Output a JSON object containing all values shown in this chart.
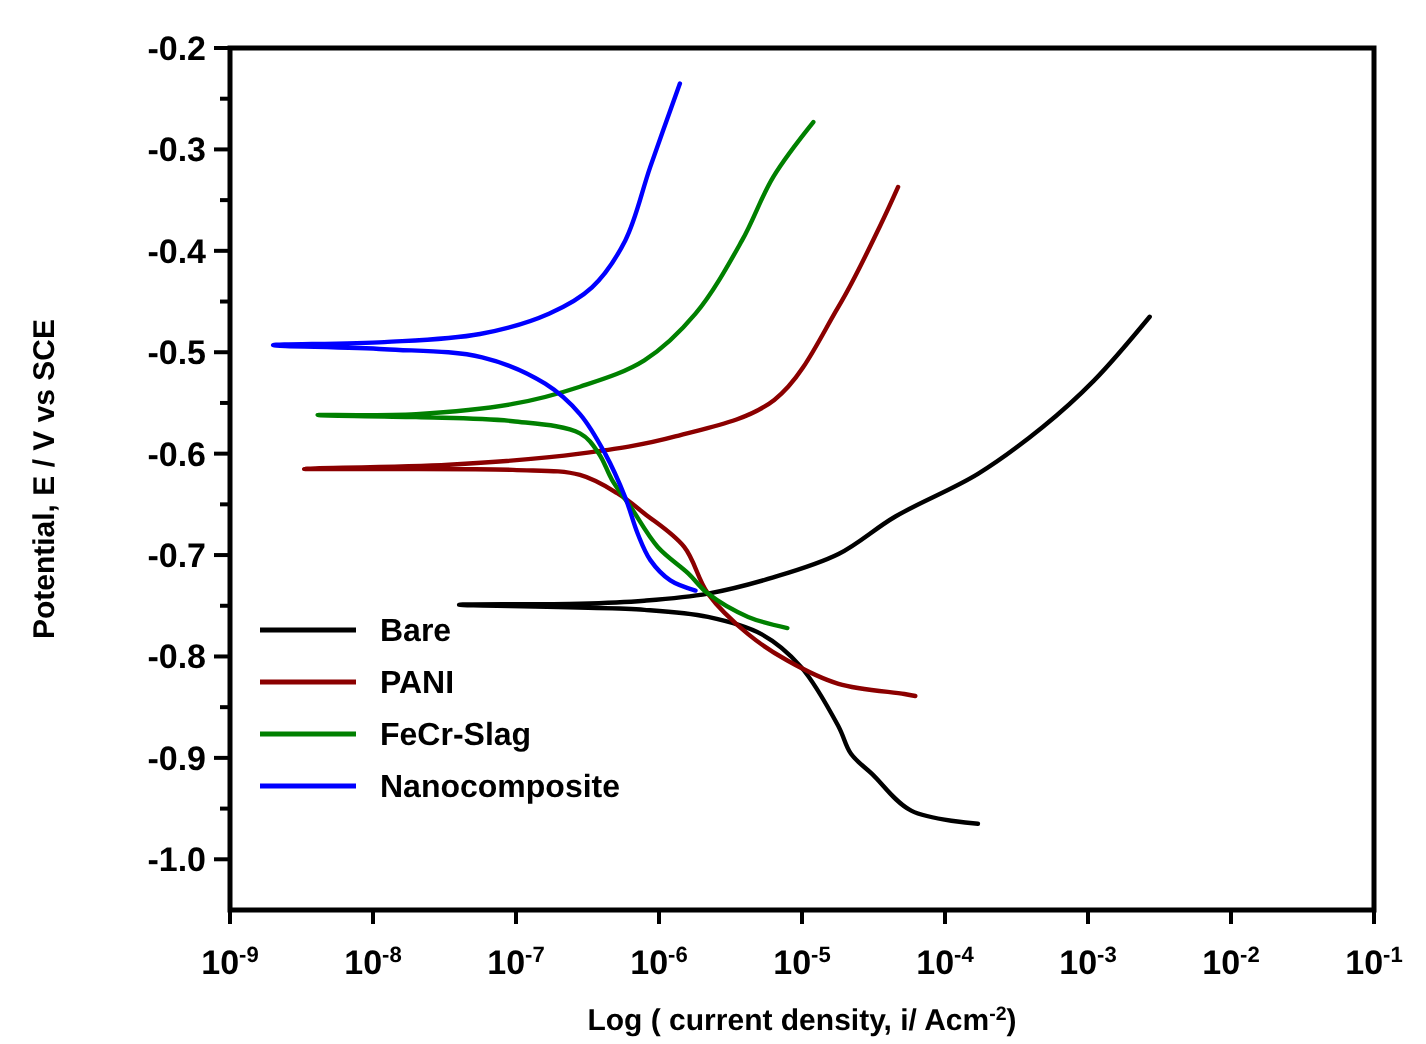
{
  "chart_data": {
    "type": "line",
    "xlabel": "Log ( current density, i/ Acm$^{-2}$)",
    "ylabel": "Potential, E / V vs SCE",
    "log": "x",
    "xlim": [
      1e-09,
      0.1
    ],
    "ylim": [
      -1.05,
      -0.2
    ],
    "xticks": [
      {
        "value": 1e-09,
        "label": "10$^{-9}$"
      },
      {
        "value": 1e-08,
        "label": "10$^{-8}$"
      },
      {
        "value": 1e-07,
        "label": "10$^{-7}$"
      },
      {
        "value": 1e-06,
        "label": "10$^{-6}$"
      },
      {
        "value": 1e-05,
        "label": "10$^{-5}$"
      },
      {
        "value": 0.0001,
        "label": "10$^{-4}$"
      },
      {
        "value": 0.001,
        "label": "10$^{-3}$"
      },
      {
        "value": 0.01,
        "label": "10$^{-2}$"
      },
      {
        "value": 0.1,
        "label": "10$^{-1}$"
      }
    ],
    "yticks": [
      -0.2,
      {
        "value": -0.25,
        "label": null
      },
      -0.3,
      {
        "value": -0.35,
        "label": null
      },
      -0.4,
      {
        "value": -0.45,
        "label": null
      },
      -0.5,
      {
        "value": -0.55,
        "label": null
      },
      -0.6,
      {
        "value": -0.65,
        "label": null
      },
      -0.7,
      {
        "value": -0.75,
        "label": null
      },
      -0.8,
      {
        "value": -0.85,
        "label": null
      },
      -0.9,
      {
        "value": -0.95,
        "label": null
      },
      {
        "value": -1,
        "label": "-1.0"
      }
    ],
    "grid": false,
    "legend": "bottom left",
    "marker": "none",
    "line_style": "solid",
    "series": [
      {
        "name": "Bare",
        "color": "#000000",
        "x": [
          0.00017,
          5.8e-05,
          3.1e-05,
          2.2e-05,
          1.8e-05,
          9.8e-06,
          5.2e-06,
          2.2e-06,
          7.9e-07,
          4e-08,
          2.8e-07,
          7.9e-07,
          2.2e-06,
          6.3e-06,
          1.8e-05,
          4.5e-05,
          0.00017,
          0.00048,
          0.0011,
          0.0027
        ],
        "values": [
          -0.965,
          -0.952,
          -0.916,
          -0.896,
          -0.869,
          -0.81,
          -0.778,
          -0.761,
          -0.754,
          -0.749,
          -0.748,
          -0.745,
          -0.738,
          -0.722,
          -0.699,
          -0.662,
          -0.62,
          -0.574,
          -0.528,
          -0.465
        ]
      },
      {
        "name": "PANI",
        "color": "#8b0000",
        "x": [
          6.2e-05,
          5.2e-05,
          1.8e-05,
          7.9e-06,
          4.2e-06,
          2.2e-06,
          1.5e-06,
          7.9e-07,
          5.1e-07,
          2.8e-07,
          9.5e-08,
          3.3e-09,
          3.4e-08,
          2.8e-07,
          1.3e-06,
          6.4e-06,
          1.8e-05,
          3.5e-05,
          4.7e-05
        ],
        "values": [
          -0.839,
          -0.837,
          -0.827,
          -0.804,
          -0.778,
          -0.738,
          -0.692,
          -0.659,
          -0.639,
          -0.621,
          -0.616,
          -0.615,
          -0.611,
          -0.6,
          -0.583,
          -0.547,
          -0.455,
          -0.376,
          -0.337
        ]
      },
      {
        "name": "FeCr-Slag",
        "color": "#008000",
        "x": [
          7.9e-06,
          4.2e-06,
          2.2e-06,
          1.6e-06,
          9.8e-07,
          6.3e-07,
          4.7e-07,
          3.8e-07,
          2.8e-07,
          9.5e-08,
          2e-08,
          4.1e-09,
          2e-08,
          9.5e-08,
          2.8e-07,
          7.9e-07,
          1.8e-06,
          3.8e-06,
          6.3e-06,
          1.2e-05
        ],
        "values": [
          -0.772,
          -0.761,
          -0.738,
          -0.718,
          -0.692,
          -0.652,
          -0.626,
          -0.6,
          -0.58,
          -0.568,
          -0.564,
          -0.562,
          -0.561,
          -0.551,
          -0.534,
          -0.508,
          -0.462,
          -0.39,
          -0.327,
          -0.273
        ]
      },
      {
        "name": "Nanocomposite",
        "color": "#0000ff",
        "x": [
          1.8e-06,
          1.2e-06,
          8.7e-07,
          7.1e-07,
          5.8e-07,
          4.2e-07,
          2.8e-07,
          1.6e-07,
          5.8e-08,
          1.2e-08,
          2e-09,
          1.2e-08,
          5.6e-08,
          1.7e-07,
          3.4e-07,
          5.8e-07,
          8.7e-07,
          1.4e-06
        ],
        "values": [
          -0.735,
          -0.725,
          -0.705,
          -0.679,
          -0.643,
          -0.6,
          -0.561,
          -0.531,
          -0.505,
          -0.497,
          -0.493,
          -0.49,
          -0.482,
          -0.462,
          -0.436,
          -0.39,
          -0.317,
          -0.235
        ]
      }
    ]
  }
}
